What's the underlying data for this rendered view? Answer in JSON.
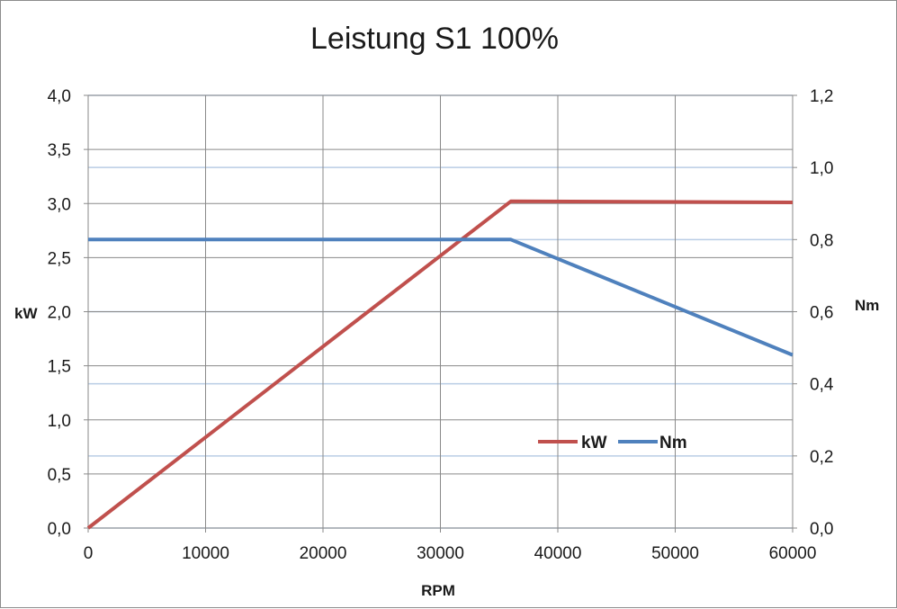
{
  "chart_data": {
    "type": "line",
    "title": "Leistung S1 100%",
    "xlabel": "RPM",
    "ylabel": "kW",
    "y2label": "Nm",
    "xlim": [
      0,
      60000
    ],
    "ylim": [
      0,
      4.0
    ],
    "y2lim": [
      0,
      1.2
    ],
    "xticks": [
      "0",
      "10000",
      "20000",
      "30000",
      "40000",
      "50000",
      "60000"
    ],
    "yticks": [
      "0,0",
      "0,5",
      "1,0",
      "1,5",
      "2,0",
      "2,5",
      "3,0",
      "3,5",
      "4,0"
    ],
    "y2ticks": [
      "0,0",
      "0,2",
      "0,4",
      "0,6",
      "0,8",
      "1,0",
      "1,2"
    ],
    "grid": true,
    "legend_position": "lower-right",
    "series": [
      {
        "name": "kW",
        "axis": "left",
        "color": "#c0504d",
        "x": [
          0,
          36000,
          60000
        ],
        "y": [
          0,
          3.02,
          3.01
        ]
      },
      {
        "name": "Nm",
        "axis": "right",
        "color": "#4f81bd",
        "x": [
          0,
          36000,
          60000
        ],
        "y": [
          0.8,
          0.8,
          0.48
        ]
      }
    ]
  }
}
